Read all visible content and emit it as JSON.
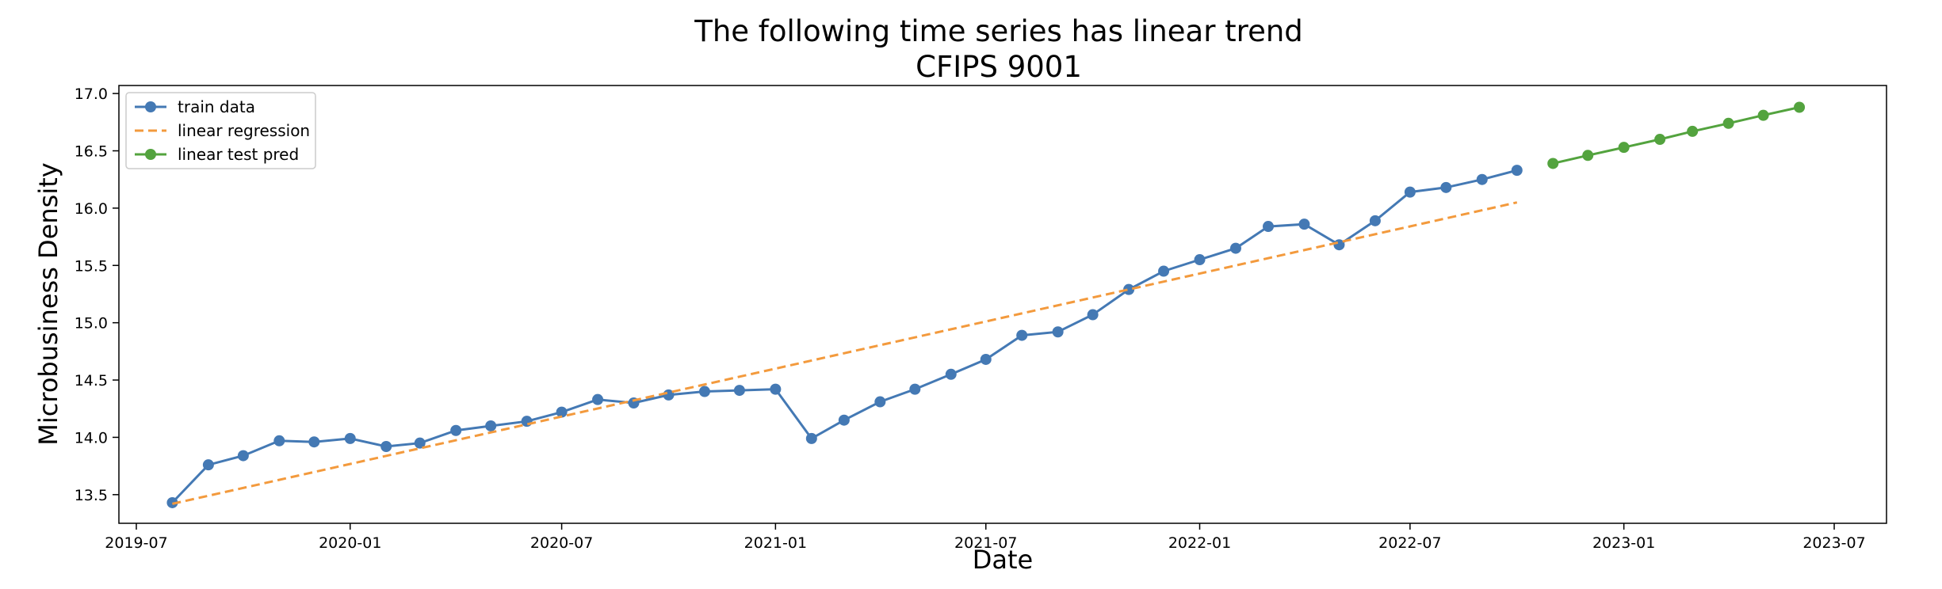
{
  "chart_data": {
    "type": "line",
    "title": "The following time series has linear trend",
    "subtitle": "CFIPS 9001",
    "xlabel": "Date",
    "ylabel": "Microbusiness Density",
    "xlim": [
      "2019-06-16",
      "2023-08-15"
    ],
    "ylim": [
      13.25,
      17.07
    ],
    "grid": false,
    "legend_position": "top-left",
    "x_ticks": [
      "2019-07",
      "2020-01",
      "2020-07",
      "2021-01",
      "2021-07",
      "2022-01",
      "2022-07",
      "2023-01",
      "2023-07"
    ],
    "y_ticks": [
      "13.5",
      "14.0",
      "14.5",
      "15.0",
      "15.5",
      "16.0",
      "16.5",
      "17.0"
    ],
    "series": [
      {
        "name": "train data",
        "color": "#4479b4",
        "style": "solid",
        "marker": "circle",
        "x": [
          "2019-08-01",
          "2019-09-01",
          "2019-10-01",
          "2019-11-01",
          "2019-12-01",
          "2020-01-01",
          "2020-02-01",
          "2020-03-01",
          "2020-04-01",
          "2020-05-01",
          "2020-06-01",
          "2020-07-01",
          "2020-08-01",
          "2020-09-01",
          "2020-10-01",
          "2020-11-01",
          "2020-12-01",
          "2021-01-01",
          "2021-02-01",
          "2021-03-01",
          "2021-04-01",
          "2021-05-01",
          "2021-06-01",
          "2021-07-01",
          "2021-08-01",
          "2021-09-01",
          "2021-10-01",
          "2021-11-01",
          "2021-12-01",
          "2022-01-01",
          "2022-02-01",
          "2022-03-01",
          "2022-04-01",
          "2022-05-01",
          "2022-06-01",
          "2022-07-01",
          "2022-08-01",
          "2022-09-01",
          "2022-10-01"
        ],
        "values": [
          13.43,
          13.76,
          13.84,
          13.97,
          13.96,
          13.99,
          13.92,
          13.95,
          14.06,
          14.1,
          14.14,
          14.22,
          14.33,
          14.3,
          14.37,
          14.4,
          14.41,
          14.42,
          13.99,
          14.15,
          14.31,
          14.42,
          14.55,
          14.68,
          14.89,
          14.92,
          15.07,
          15.29,
          15.45,
          15.55,
          15.65,
          15.84,
          15.86,
          15.68,
          15.89,
          16.14,
          16.18,
          16.25,
          16.33
        ]
      },
      {
        "name": "linear regression",
        "color": "#f39a3d",
        "style": "dashed",
        "marker": "none",
        "x": [
          "2019-08-01",
          "2022-10-01"
        ],
        "values": [
          13.42,
          16.05
        ]
      },
      {
        "name": "linear test pred",
        "color": "#53a33e",
        "style": "solid",
        "marker": "circle",
        "x": [
          "2022-11-01",
          "2022-12-01",
          "2023-01-01",
          "2023-02-01",
          "2023-03-01",
          "2023-04-01",
          "2023-05-01",
          "2023-06-01"
        ],
        "values": [
          16.39,
          16.46,
          16.53,
          16.6,
          16.67,
          16.74,
          16.81,
          16.88
        ]
      }
    ]
  }
}
